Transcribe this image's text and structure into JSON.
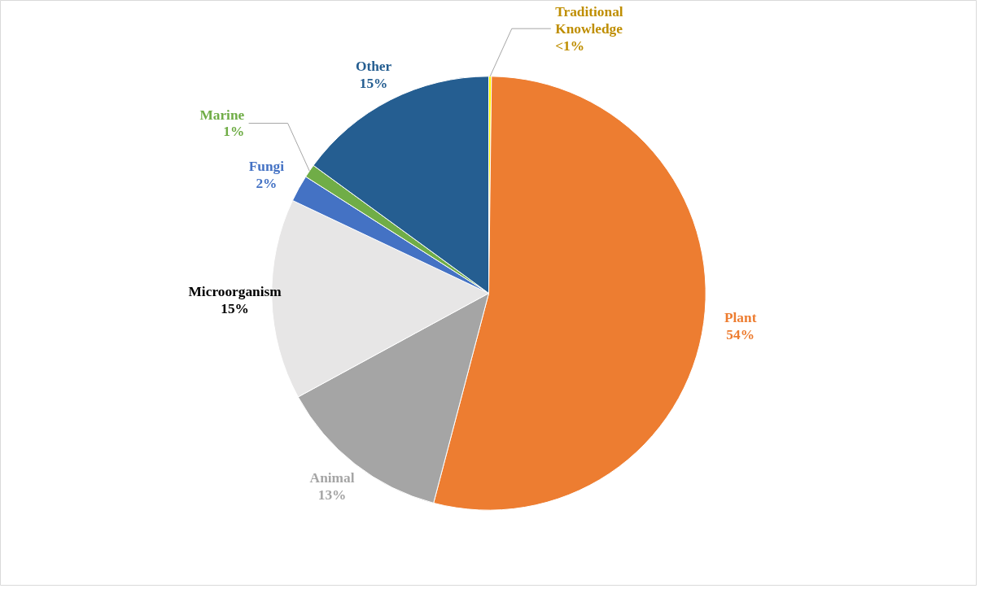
{
  "chart_data": {
    "type": "pie",
    "categories": [
      "Traditional Knowledge",
      "Plant",
      "Animal",
      "Microorganism",
      "Fungi",
      "Marine",
      "Other"
    ],
    "values": [
      0.2,
      54,
      13,
      15,
      2,
      1,
      15
    ],
    "value_labels": [
      "<1%",
      "54%",
      "13%",
      "15%",
      "2%",
      "1%",
      "15%"
    ],
    "colors": [
      "#ffff00",
      "#ed7d31",
      "#a5a5a5",
      "#e7e6e6",
      "#4472c4",
      "#70ad47",
      "#255e91"
    ]
  }
}
